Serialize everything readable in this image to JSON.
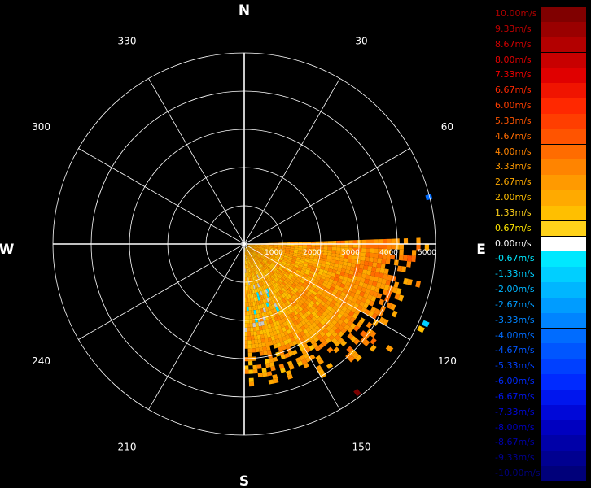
{
  "compass": {
    "north": "N",
    "south": "S",
    "east": "E",
    "west": "W"
  },
  "azimuth_labels": [
    "30",
    "60",
    "120",
    "150",
    "210",
    "240",
    "300",
    "330"
  ],
  "colors": {
    "background": "#000000",
    "grid": "#ffffff",
    "positive_palette": [
      "#ffd21a",
      "#ffbf00",
      "#ffaa00",
      "#ff9a00",
      "#ff8400",
      "#ff6c00",
      "#ff5400",
      "#ff3e00",
      "#ff2800",
      "#f01400",
      "#d00000",
      "#b00000",
      "#900000",
      "#7a0000"
    ],
    "negative_palette": [
      "#00e8ff",
      "#00cfff",
      "#00b6ff",
      "#009cff",
      "#0084ff",
      "#006cff",
      "#0056ff",
      "#0040ff",
      "#002aff",
      "#0016ee",
      "#0008d8",
      "#0000c0",
      "#0000a8",
      "#000090"
    ],
    "zero": "#ffffff",
    "nodata_gray": "#c8c8c8"
  },
  "legend": {
    "labels": [
      "10.00m/s",
      "9.33m/s",
      "8.67m/s",
      "8.00m/s",
      "7.33m/s",
      "6.67m/s",
      "6.00m/s",
      "5.33m/s",
      "4.67m/s",
      "4.00m/s",
      "3.33m/s",
      "2.67m/s",
      "2.00m/s",
      "1.33m/s",
      "0.67m/s",
      "0.00m/s",
      "-0.67m/s",
      "-1.33m/s",
      "-2.00m/s",
      "-2.67m/s",
      "-3.33m/s",
      "-4.00m/s",
      "-4.67m/s",
      "-5.33m/s",
      "-6.00m/s",
      "-6.67m/s",
      "-7.33m/s",
      "-8.00m/s",
      "-8.67m/s",
      "-9.33m/s",
      "-10.00m/s"
    ],
    "colors": [
      "#800000",
      "#9a0000",
      "#b30000",
      "#c80000",
      "#e00000",
      "#f01400",
      "#ff2800",
      "#ff3e00",
      "#ff5400",
      "#ff6c00",
      "#ff8400",
      "#ff9a00",
      "#ffaa00",
      "#ffbf00",
      "#ffd21a",
      "#ffffff",
      "#00e8ff",
      "#00cfff",
      "#00b6ff",
      "#009cff",
      "#0084ff",
      "#006cff",
      "#0056ff",
      "#0040ff",
      "#002aff",
      "#0016ee",
      "#0008d8",
      "#0000c0",
      "#0000a8",
      "#000090",
      "#00007a"
    ],
    "label_colors": [
      "#b00000",
      "#c00000",
      "#d00000",
      "#e00000",
      "#ef0000",
      "#ff2800",
      "#ff3e00",
      "#ff5400",
      "#ff6c00",
      "#ff8400",
      "#ff9a00",
      "#ffaa00",
      "#ffbf00",
      "#ffd21a",
      "#ffe600",
      "#ffffff",
      "#00e8ff",
      "#00cfff",
      "#00b6ff",
      "#009cff",
      "#0084ff",
      "#006cff",
      "#0056ff",
      "#0040ff",
      "#002aff",
      "#0016ee",
      "#0008d8",
      "#0000c0",
      "#0000a8",
      "#000090",
      "#00007a"
    ]
  },
  "chart_data": {
    "type": "heatmap",
    "projection": "polar",
    "theta_direction": "clockwise",
    "theta_zero": "north",
    "r_max": 5000,
    "range_ticks": [
      1000,
      2000,
      3000,
      4000,
      5000
    ],
    "range_tick_labels": [
      "1000",
      "2000",
      "3000",
      "4000",
      "5000"
    ],
    "azimuth_ticks_deg": [
      30,
      60,
      120,
      150,
      210,
      240,
      300,
      330
    ],
    "colorbar": {
      "min": -10.0,
      "max": 10.0,
      "step": 0.67,
      "unit": "m/s"
    },
    "velocity_sector": {
      "azimuth_range_deg": [
        88,
        180
      ],
      "range_range": [
        0,
        4600
      ],
      "typical_value_ms": 2.3,
      "value_range_ms": [
        0.67,
        4.67
      ],
      "note_values": "mostly 1.33–4.00 m/s outbound with sparse near-zero and small negative gates near 150–175 deg"
    },
    "sparse_echoes": [
      {
        "az": 75,
        "r": 4900,
        "v": -4.0
      },
      {
        "az": 113,
        "r": 5100,
        "v": -1.33
      },
      {
        "az": 115,
        "r": 5050,
        "v": 1.33
      },
      {
        "az": 125,
        "r": 4600,
        "v": 2.67
      },
      {
        "az": 142,
        "r": 4800,
        "v": 9.33
      }
    ]
  }
}
